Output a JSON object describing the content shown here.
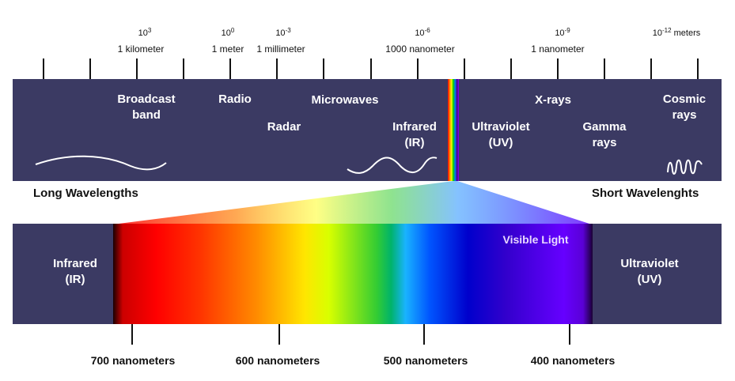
{
  "scale": {
    "exponents": [
      {
        "base": "10",
        "exp": "3",
        "suffix": ""
      },
      {
        "base": "10",
        "exp": "0",
        "suffix": ""
      },
      {
        "base": "10",
        "exp": "-3",
        "suffix": ""
      },
      {
        "base": "10",
        "exp": "-6",
        "suffix": ""
      },
      {
        "base": "10",
        "exp": "-9",
        "suffix": ""
      },
      {
        "base": "10",
        "exp": "-12",
        "suffix": " meters"
      }
    ],
    "units": [
      "1 kilometer",
      "1 meter",
      "1 millimeter",
      "1000 nanometer",
      "1 nanometer"
    ]
  },
  "spectrum_band": {
    "regions": [
      {
        "lines": [
          "Broadcast",
          "band"
        ]
      },
      {
        "lines": [
          "Radio"
        ]
      },
      {
        "lines": [
          "Microwaves"
        ]
      },
      {
        "lines": [
          "Radar"
        ]
      },
      {
        "lines": [
          "Infrared",
          "(IR)"
        ]
      },
      {
        "lines": [
          "Ultraviolet",
          "(UV)"
        ]
      },
      {
        "lines": [
          "X-rays"
        ]
      },
      {
        "lines": [
          "Gamma",
          "rays"
        ]
      },
      {
        "lines": [
          "Cosmic",
          "rays"
        ]
      }
    ]
  },
  "wavelength_labels": {
    "long": "Long Wavelengths",
    "short": "Short Wavelenghts"
  },
  "visible_band": {
    "left": [
      "Infrared",
      "(IR)"
    ],
    "right": [
      "Ultraviolet",
      "(UV)"
    ],
    "title": "Visible Light"
  },
  "nanometer_scale": [
    "700 nanometers",
    "600 nanometers",
    "500 nanometers",
    "400 nanometers"
  ],
  "colors": {
    "band": "#3b3a63",
    "visible_title": "#e8d8ff"
  }
}
